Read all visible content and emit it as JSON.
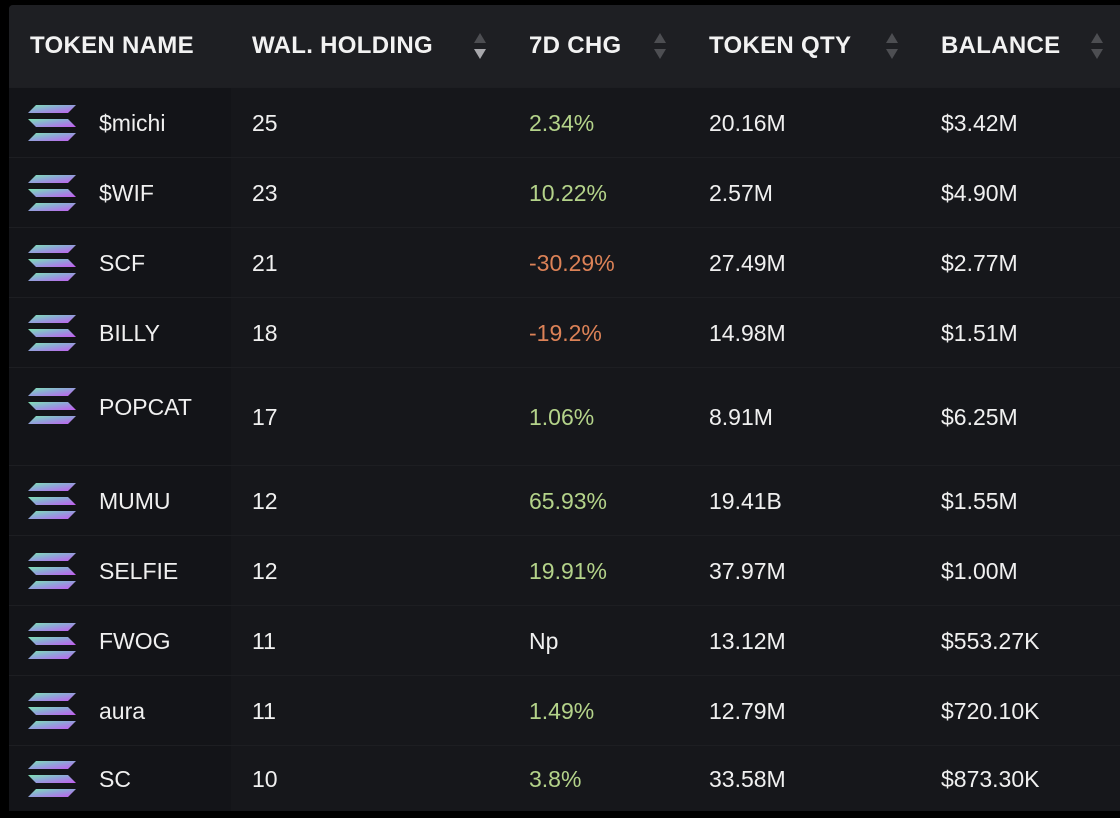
{
  "columns": {
    "token_name": "TOKEN NAME",
    "wal_holding": "WAL. HOLDING",
    "chg_7d": "7D CHG",
    "token_qty": "TOKEN QTY",
    "balance": "BALANCE"
  },
  "colors": {
    "positive": "#b4d38a",
    "negative": "#dc8257",
    "background": "#16171b",
    "header": "#1e1f23"
  },
  "rows": [
    {
      "icon": "solana-icon",
      "name": "$michi",
      "holding": "25",
      "change": "2.34%",
      "trend": "pos",
      "qty": "20.16M",
      "balance": "$3.42M"
    },
    {
      "icon": "solana-icon",
      "name": "$WIF",
      "holding": "23",
      "change": "10.22%",
      "trend": "pos",
      "qty": "2.57M",
      "balance": "$4.90M"
    },
    {
      "icon": "solana-icon",
      "name": "SCF",
      "holding": "21",
      "change": "-30.29%",
      "trend": "neg",
      "qty": "27.49M",
      "balance": "$2.77M"
    },
    {
      "icon": "solana-icon",
      "name": "BILLY",
      "holding": "18",
      "change": "-19.2%",
      "trend": "neg",
      "qty": "14.98M",
      "balance": "$1.51M"
    },
    {
      "icon": "solana-icon",
      "name": "POPCAT",
      "holding": "17",
      "change": "1.06%",
      "trend": "pos",
      "qty": "8.91M",
      "balance": "$6.25M"
    },
    {
      "icon": "solana-icon",
      "name": "MUMU",
      "holding": "12",
      "change": "65.93%",
      "trend": "pos",
      "qty": "19.41B",
      "balance": "$1.55M"
    },
    {
      "icon": "solana-icon",
      "name": "SELFIE",
      "holding": "12",
      "change": "19.91%",
      "trend": "pos",
      "qty": "37.97M",
      "balance": "$1.00M"
    },
    {
      "icon": "solana-icon",
      "name": "FWOG",
      "holding": "11",
      "change": "Np",
      "trend": "neu",
      "qty": "13.12M",
      "balance": "$553.27K"
    },
    {
      "icon": "solana-icon",
      "name": "aura",
      "holding": "11",
      "change": "1.49%",
      "trend": "pos",
      "qty": "12.79M",
      "balance": "$720.10K"
    },
    {
      "icon": "solana-icon",
      "name": "SC",
      "holding": "10",
      "change": "3.8%",
      "trend": "pos",
      "qty": "33.58M",
      "balance": "$873.30K"
    }
  ]
}
